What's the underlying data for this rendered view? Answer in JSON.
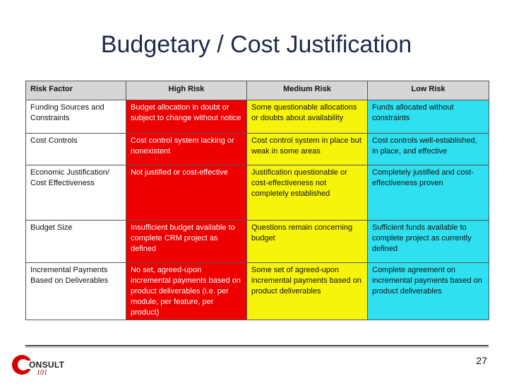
{
  "slide": {
    "title": "Budgetary / Cost Justification",
    "page_number": "27"
  },
  "table": {
    "headers": [
      "Risk Factor",
      "High Risk",
      "Medium Risk",
      "Low Risk"
    ],
    "rows": [
      {
        "factor": "Funding Sources and Constraints",
        "high": "Budget allocation in doubt or subject to change without notice",
        "medium": "Some questionable allocations or doubts about availability",
        "low": "Funds allocated without constraints"
      },
      {
        "factor": "Cost Controls",
        "high": "Cost control system lacking or nonexistent",
        "medium": "Cost control system in place but weak in some areas",
        "low": "Cost controls well-established, in place, and effective"
      },
      {
        "factor": "Economic Justification/ Cost Effectiveness",
        "high": "Not justified or cost-effective",
        "medium": "Justification questionable or cost-effectiveness not completely established",
        "low": "Completely justified and cost-effectiveness proven"
      },
      {
        "factor": "Budget Size",
        "high": "Insufficient budget available to complete CRM project as defined",
        "medium": "Questions remain concerning budget",
        "low": "Sufficient funds available to complete project as currently defined"
      },
      {
        "factor": "Incremental Payments Based on Deliverables",
        "high": "No set, agreed-upon incremental payments based on product deliverables (i.e. per module, per feature, per product)",
        "medium": "Some set of agreed-upon incremental payments based on product deliverables",
        "low": "Complete agreement on incremental payments based on product deliverables"
      }
    ]
  },
  "colors": {
    "high": "#ee0000",
    "medium": "#f6f40a",
    "low": "#2ee0f0",
    "header": "#d6d6d6"
  },
  "logo": {
    "word": "ONSULT",
    "sub": "101"
  }
}
